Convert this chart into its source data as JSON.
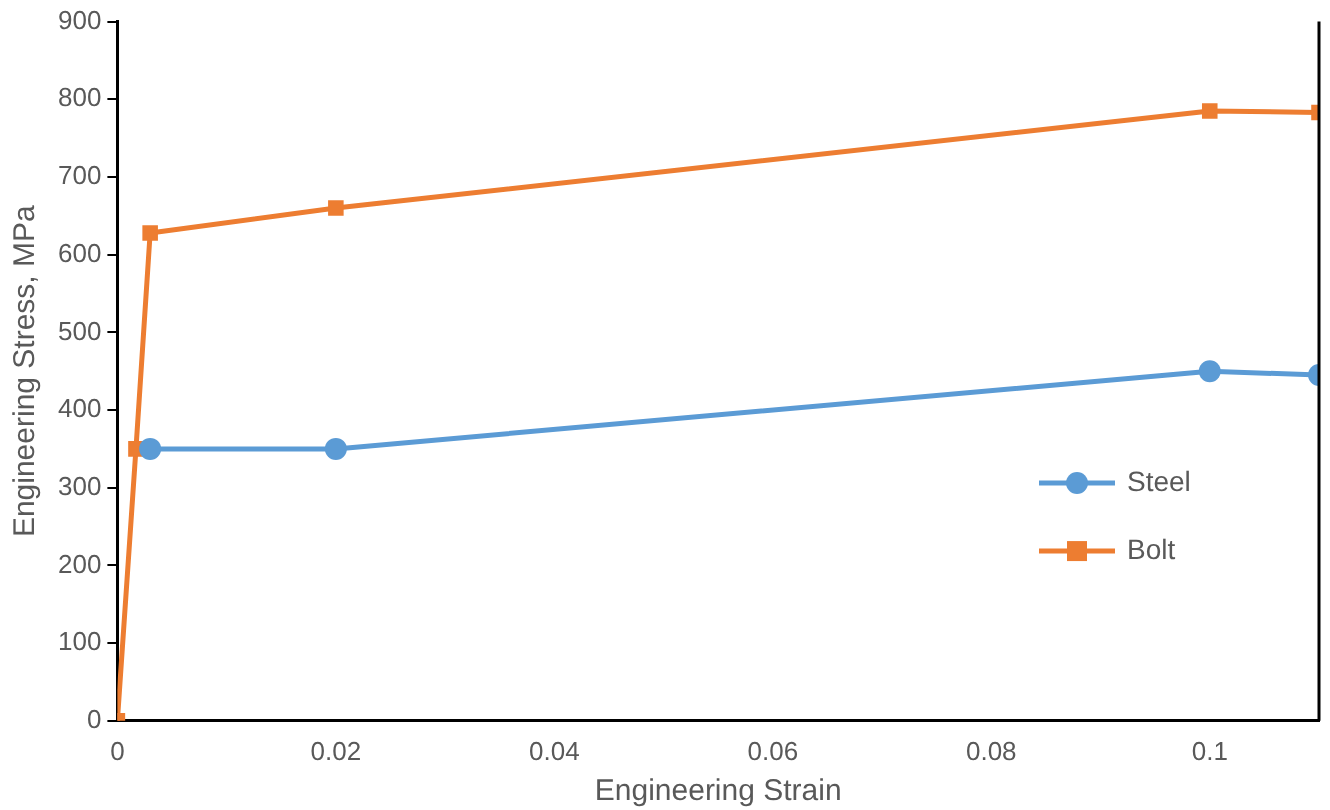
{
  "chart_data": {
    "type": "line",
    "xlabel": "Engineering Strain",
    "ylabel": "Engineering Stress, MPa",
    "xlim": [
      0,
      0.11
    ],
    "xticks": [
      0,
      0.02,
      0.04,
      0.06,
      0.08,
      0.1
    ],
    "ylim": [
      0,
      900
    ],
    "yticks": [
      0,
      100,
      200,
      300,
      400,
      500,
      600,
      700,
      800,
      900
    ],
    "grid": false,
    "legend": "right",
    "line_style": "solid",
    "series": [
      {
        "name": "Steel",
        "color": "#5b9bd5",
        "marker": "circle",
        "x": [
          0.003,
          0.02,
          0.1,
          0.11
        ],
        "values": [
          350,
          350,
          450,
          445
        ]
      },
      {
        "name": "Bolt",
        "color": "#ed7d31",
        "marker": "square",
        "x": [
          0,
          0.0017,
          0.003,
          0.02,
          0.1,
          0.11
        ],
        "values": [
          0,
          350,
          628,
          660,
          785,
          783
        ]
      }
    ]
  }
}
